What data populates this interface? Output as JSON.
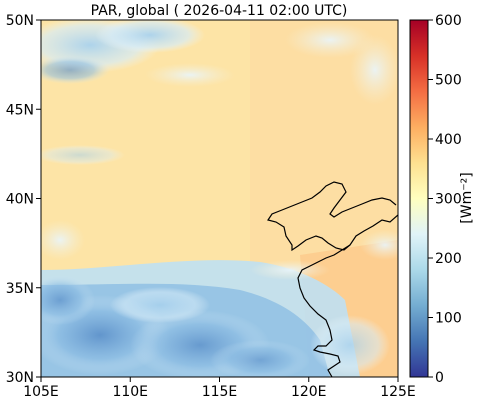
{
  "title": "PAR, global ( 2026-04-11 02:00 UTC)",
  "map": {
    "lon_range": [
      105,
      125
    ],
    "lat_range": [
      30,
      50
    ],
    "x_ticks": [
      {
        "value": 105,
        "label": "105E"
      },
      {
        "value": 110,
        "label": "110E"
      },
      {
        "value": 115,
        "label": "115E"
      },
      {
        "value": 120,
        "label": "120E"
      },
      {
        "value": 125,
        "label": "125E"
      }
    ],
    "y_ticks": [
      {
        "value": 50,
        "label": "50N"
      },
      {
        "value": 45,
        "label": "45N"
      },
      {
        "value": 40,
        "label": "40N"
      },
      {
        "value": 35,
        "label": "35N"
      },
      {
        "value": 30,
        "label": "30N"
      }
    ]
  },
  "colorbar": {
    "label": "[Wm⁻²]",
    "range": [
      0,
      600
    ],
    "ticks": [
      "600",
      "500",
      "400",
      "300",
      "200",
      "100",
      "0"
    ],
    "colormap": "RdYlBu_r",
    "colors": [
      "#313695",
      "#4575b4",
      "#74add1",
      "#abd9e9",
      "#e0f3f8",
      "#ffffbf",
      "#fee090",
      "#fdae61",
      "#f46d43",
      "#d73027",
      "#a50026"
    ]
  },
  "field_colors": {
    "clear_sky": "#fde4a6",
    "bright": "#fdd496",
    "cloud_light": "#dbeefa",
    "cloud_mid": "#9cc8e6",
    "cloud_dense": "#6d9fd0",
    "coastline": "#000000"
  }
}
